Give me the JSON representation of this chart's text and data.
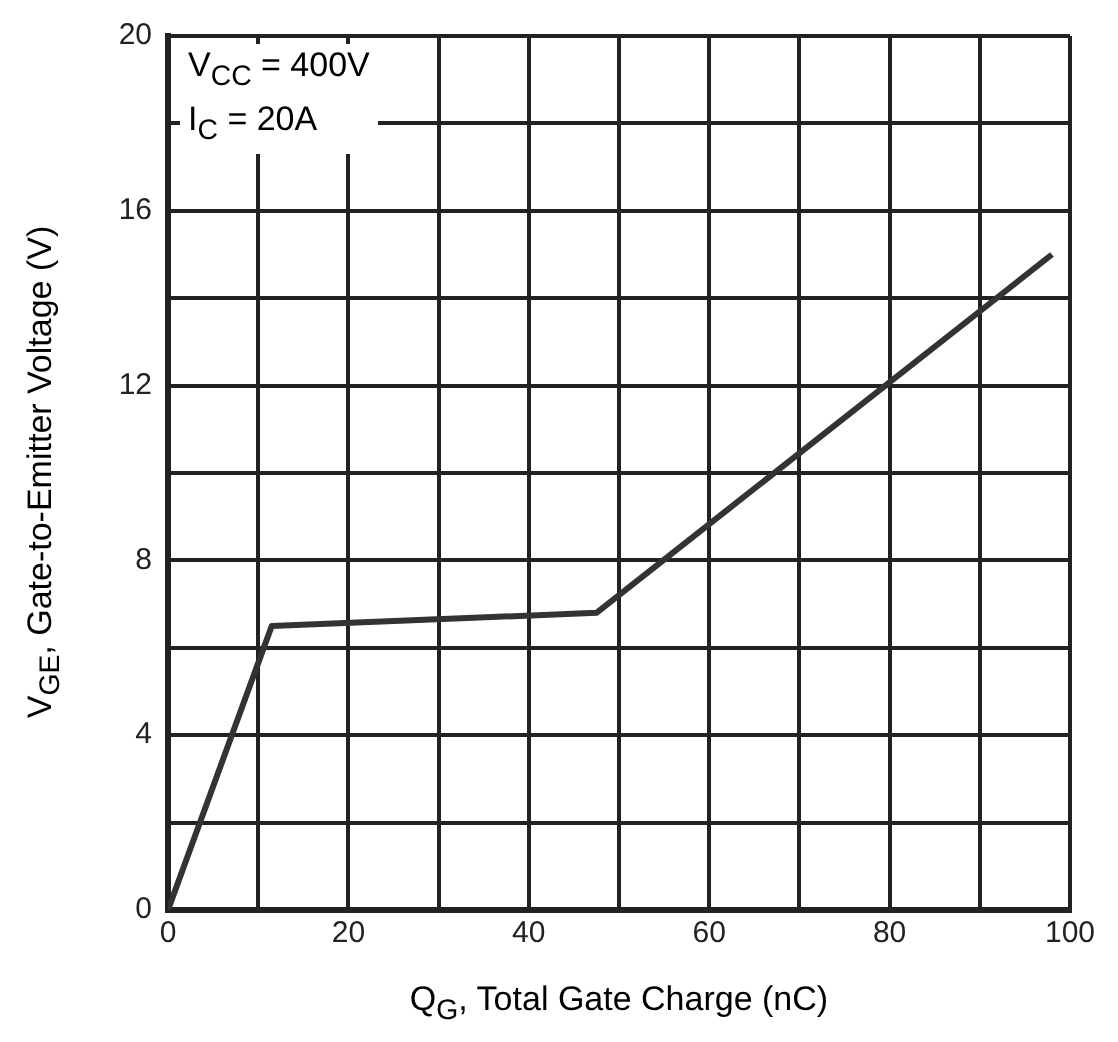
{
  "chart_data": {
    "type": "line",
    "xlabel": "Q$_{G}$, Total Gate Charge (nC)",
    "ylabel": "V$_{GE}$, Gate-to-Emitter Voltage (V)",
    "annotations": [
      "V$_{CC}$ = 400V",
      "I$_{C}$ = 20A"
    ],
    "x": [
      0,
      11.5,
      47.5,
      98
    ],
    "series": [
      {
        "color": "#333333",
        "values": [
          0,
          6.5,
          6.8,
          15
        ]
      }
    ],
    "xlim": [
      0,
      100
    ],
    "xticks": [
      0,
      {
        "value": 10,
        "label": null
      },
      20,
      {
        "value": 30,
        "label": null
      },
      40,
      {
        "value": 50,
        "label": null
      },
      60,
      {
        "value": 70,
        "label": null
      },
      80,
      {
        "value": 90,
        "label": null
      },
      100
    ],
    "ylim": [
      0,
      20
    ],
    "yticks": [
      0,
      {
        "value": 2,
        "label": null
      },
      4,
      {
        "value": 6,
        "label": null
      },
      8,
      {
        "value": 10,
        "label": null
      },
      12,
      {
        "value": 14,
        "label": null
      },
      16,
      {
        "value": 18,
        "label": null
      },
      20
    ],
    "grid": true,
    "legend": false,
    "marker": "none",
    "line_style": "solid"
  }
}
